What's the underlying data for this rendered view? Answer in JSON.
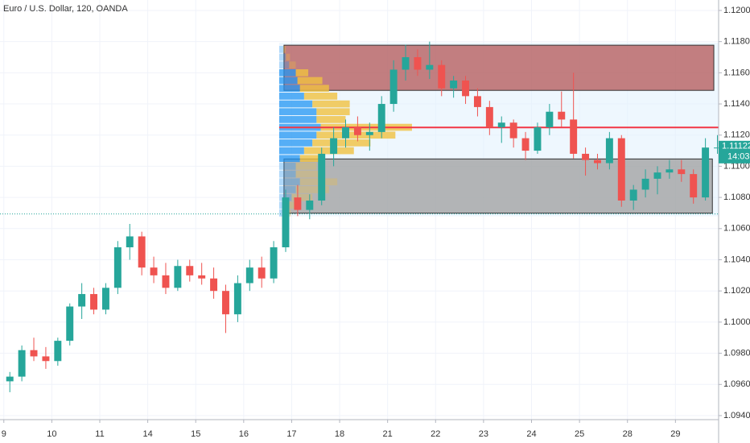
{
  "chart_data": {
    "type": "candlestick",
    "title": "Euro / U.S. Dollar, 120, OANDA",
    "up_color": "#26a69a",
    "down_color": "#ef5350",
    "grid": true,
    "xlim": [
      -0.08,
      14.9
    ],
    "ylim": [
      1.09374,
      1.12067
    ],
    "xticks": [
      {
        "value": 0,
        "label": "9"
      },
      {
        "value": 1,
        "label": "10"
      },
      {
        "value": 2,
        "label": "11"
      },
      {
        "value": 3,
        "label": "14"
      },
      {
        "value": 4,
        "label": "15"
      },
      {
        "value": 5,
        "label": "16"
      },
      {
        "value": 6,
        "label": "17"
      },
      {
        "value": 7,
        "label": "18"
      },
      {
        "value": 8,
        "label": "21"
      },
      {
        "value": 9,
        "label": "22"
      },
      {
        "value": 10,
        "label": "23"
      },
      {
        "value": 11,
        "label": "24"
      },
      {
        "value": 12,
        "label": "25"
      },
      {
        "value": 13,
        "label": "28"
      },
      {
        "value": 14,
        "label": "29"
      }
    ],
    "yticks": [
      {
        "value": 1.094,
        "label": "1.09400"
      },
      {
        "value": 1.096,
        "label": "1.09600"
      },
      {
        "value": 1.098,
        "label": "1.09800"
      },
      {
        "value": 1.1,
        "label": "1.10000"
      },
      {
        "value": 1.102,
        "label": "1.10200"
      },
      {
        "value": 1.104,
        "label": "1.10400"
      },
      {
        "value": 1.106,
        "label": "1.10600"
      },
      {
        "value": 1.108,
        "label": "1.10800"
      },
      {
        "value": 1.11,
        "label": "1.11000"
      },
      {
        "value": 1.112,
        "label": "1.11200"
      },
      {
        "value": 1.114,
        "label": "1.11400"
      },
      {
        "value": 1.116,
        "label": "1.11600"
      },
      {
        "value": 1.118,
        "label": "1.11800"
      },
      {
        "value": 1.12,
        "label": "1.12000"
      }
    ],
    "x": [
      0.125,
      0.375,
      0.625,
      0.875,
      1.125,
      1.375,
      1.625,
      1.875,
      2.125,
      2.375,
      2.625,
      2.875,
      3.125,
      3.375,
      3.625,
      3.875,
      4.125,
      4.375,
      4.625,
      4.875,
      5.125,
      5.375,
      5.625,
      5.875,
      6.125,
      6.375,
      6.625,
      6.875,
      7.125,
      7.375,
      7.625,
      7.875,
      8.125,
      8.375,
      8.625,
      8.875,
      9.125,
      9.375,
      9.625,
      9.875,
      10.125,
      10.375,
      10.625,
      10.875,
      11.125,
      11.375,
      11.625,
      11.875,
      12.125,
      12.375,
      12.625,
      12.875,
      13.125,
      13.375,
      13.625,
      13.875,
      14.125,
      14.375,
      14.625,
      14.875
    ],
    "open": [
      1.0962,
      1.0965,
      1.0982,
      1.0978,
      1.0975,
      1.0988,
      1.101,
      1.1018,
      1.1008,
      1.1022,
      1.1048,
      1.1055,
      1.1035,
      1.103,
      1.1022,
      1.1036,
      1.103,
      1.1028,
      1.102,
      1.1005,
      1.1025,
      1.1035,
      1.1028,
      1.1048,
      1.108,
      1.1072,
      1.1078,
      1.1108,
      1.1118,
      1.1125,
      1.112,
      1.1122,
      1.114,
      1.1162,
      1.117,
      1.1162,
      1.1165,
      1.115,
      1.1155,
      1.1145,
      1.1138,
      1.1125,
      1.1128,
      1.1118,
      1.111,
      1.1125,
      1.1135,
      1.113,
      1.1108,
      1.1104,
      1.1102,
      1.1118,
      1.1078,
      1.1085,
      1.1092,
      1.1096,
      1.1098,
      1.1095,
      1.108,
      1.1112
    ],
    "high": [
      1.0968,
      1.0985,
      1.099,
      1.0984,
      1.099,
      1.1012,
      1.1025,
      1.1022,
      1.1025,
      1.1052,
      1.1063,
      1.1058,
      1.1042,
      1.1038,
      1.104,
      1.104,
      1.1038,
      1.1035,
      1.1024,
      1.103,
      1.104,
      1.1042,
      1.1052,
      1.1085,
      1.1088,
      1.1082,
      1.1112,
      1.1125,
      1.113,
      1.1132,
      1.1128,
      1.1145,
      1.1168,
      1.1178,
      1.1175,
      1.118,
      1.1168,
      1.1158,
      1.1158,
      1.115,
      1.1142,
      1.1132,
      1.113,
      1.1122,
      1.1128,
      1.114,
      1.1148,
      1.116,
      1.1112,
      1.1108,
      1.1122,
      1.112,
      1.1088,
      1.1098,
      1.11,
      1.1104,
      1.1104,
      1.1098,
      1.1118,
      1.112
    ],
    "low": [
      1.0955,
      1.0962,
      1.0975,
      1.097,
      1.0972,
      1.0985,
      1.1002,
      1.1005,
      1.1005,
      1.1018,
      1.104,
      1.103,
      1.1025,
      1.1018,
      1.102,
      1.1026,
      1.1024,
      1.1015,
      1.0993,
      1.1,
      1.102,
      1.1022,
      1.1025,
      1.1045,
      1.1068,
      1.1066,
      1.1075,
      1.11,
      1.1112,
      1.1116,
      1.111,
      1.1118,
      1.1135,
      1.1155,
      1.1158,
      1.1156,
      1.1145,
      1.1144,
      1.114,
      1.1132,
      1.112,
      1.1115,
      1.1112,
      1.1104,
      1.1108,
      1.112,
      1.1125,
      1.1105,
      1.1094,
      1.1098,
      1.1098,
      1.1074,
      1.1072,
      1.108,
      1.1082,
      1.1092,
      1.109,
      1.1076,
      1.1078,
      1.1108
    ],
    "close": [
      1.0965,
      1.0982,
      1.0978,
      1.0975,
      1.0988,
      1.101,
      1.1018,
      1.1008,
      1.1022,
      1.1048,
      1.1055,
      1.1035,
      1.103,
      1.1022,
      1.1036,
      1.103,
      1.1028,
      1.102,
      1.1005,
      1.1025,
      1.1035,
      1.1028,
      1.1048,
      1.108,
      1.1072,
      1.1078,
      1.1108,
      1.1118,
      1.1125,
      1.112,
      1.1122,
      1.114,
      1.1162,
      1.117,
      1.1162,
      1.1165,
      1.115,
      1.1155,
      1.1145,
      1.1138,
      1.1125,
      1.1128,
      1.1118,
      1.111,
      1.1125,
      1.1135,
      1.113,
      1.1108,
      1.1104,
      1.1102,
      1.1118,
      1.1078,
      1.1085,
      1.1092,
      1.1096,
      1.1098,
      1.1095,
      1.108,
      1.1112,
      1.1112
    ],
    "zones": [
      {
        "x": [
          5.74,
          14.9
        ],
        "y": [
          1.10679,
          1.11793
        ],
        "color": "#e3f2fd"
      },
      {
        "x": [
          5.84,
          14.8
        ],
        "y": [
          1.11487,
          1.11777
        ],
        "color": "#b35555"
      },
      {
        "x": [
          5.84,
          14.77
        ],
        "y": [
          1.10699,
          1.11047
        ],
        "color": "#9e9e9e"
      }
    ],
    "lines": [
      {
        "y": 1.11249,
        "color": "#f23645",
        "style": "solid"
      },
      {
        "y": 1.10694,
        "color": "#26a69a",
        "style": "dotted"
      }
    ],
    "volume_profile": {
      "x": 5.74,
      "levels": [
        1.1175,
        1.117,
        1.1165,
        1.116,
        1.1155,
        1.115,
        1.1145,
        1.114,
        1.1135,
        1.113,
        1.1125,
        1.112,
        1.1115,
        1.111,
        1.1105,
        1.11,
        1.1095,
        1.109,
        1.1085,
        1.108,
        1.1075,
        1.107
      ],
      "up": [
        5,
        8,
        12,
        20,
        22,
        25,
        30,
        40,
        45,
        45,
        50,
        45,
        40,
        30,
        25,
        20,
        20,
        25,
        20,
        15,
        12,
        8
      ],
      "down": [
        3,
        5,
        8,
        15,
        30,
        35,
        40,
        45,
        40,
        35,
        110,
        95,
        70,
        60,
        30,
        25,
        30,
        45,
        40,
        25,
        10,
        6
      ]
    },
    "last_price": {
      "value": 1.11122,
      "label": "1.11122"
    },
    "countdown": "14:03"
  }
}
